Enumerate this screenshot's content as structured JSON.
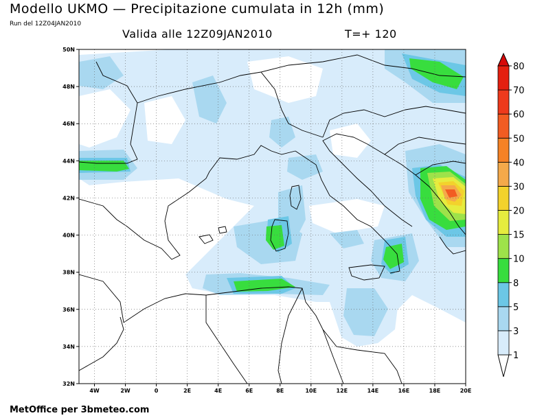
{
  "header": {
    "title": "Modello UKMO — Precipitazione cumulata in 12h (mm)",
    "run": "Run del 12Z04JAN2010",
    "valid": "Valida alle 12Z09JAN2010",
    "tplus": "T=+ 120"
  },
  "map": {
    "lat_labels": [
      "50N",
      "48N",
      "46N",
      "44N",
      "42N",
      "40N",
      "38N",
      "36N",
      "34N",
      "32N"
    ],
    "lon_labels": [
      "4W",
      "2W",
      "0",
      "2E",
      "4E",
      "6E",
      "8E",
      "10E",
      "12E",
      "14E",
      "16E",
      "18E",
      "20E"
    ],
    "lat_range": [
      32,
      50
    ],
    "lon_range": [
      -5,
      20
    ]
  },
  "colorbar": {
    "levels": [
      "1",
      "3",
      "5",
      "8",
      "10",
      "15",
      "20",
      "30",
      "40",
      "50",
      "60",
      "70",
      "80"
    ],
    "colors": [
      "#ffffff",
      "#d8ecfb",
      "#a9d8f0",
      "#6cc7e6",
      "#38dd3e",
      "#9ee24a",
      "#e6ec3e",
      "#f3d22c",
      "#f4a94a",
      "#f58226",
      "#f25c22",
      "#ee3a1c",
      "#e42010",
      "#d60a0a"
    ]
  },
  "footer": "MetOffice per 3bmeteo.com"
}
